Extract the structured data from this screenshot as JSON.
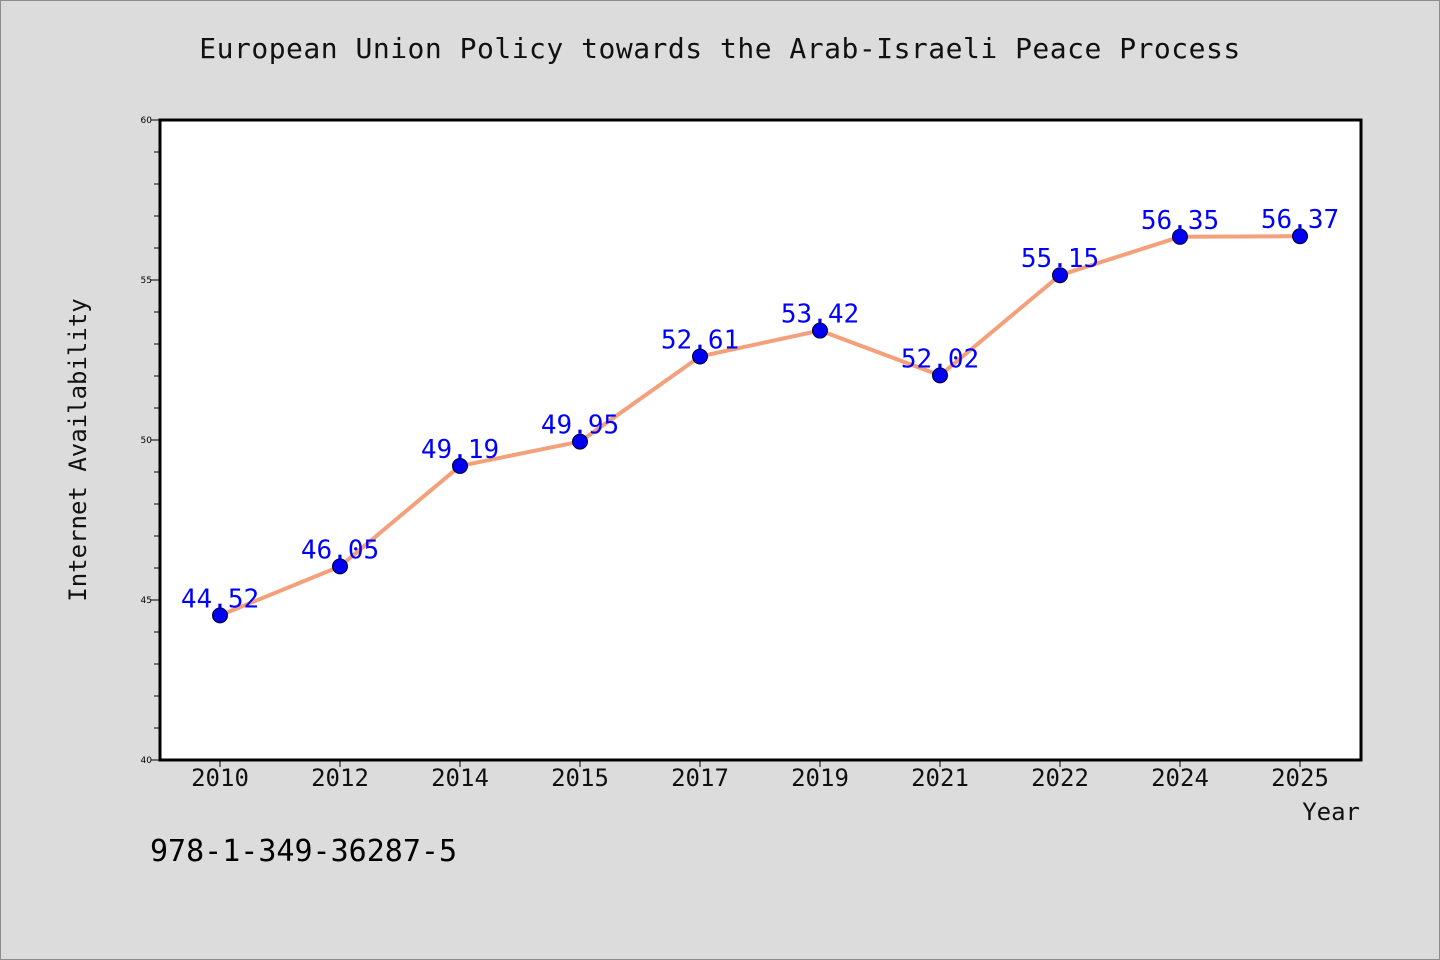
{
  "chart_data": {
    "type": "line",
    "title": "European Union Policy towards the Arab-Israeli Peace Process",
    "xlabel": "Year",
    "ylabel": "Internet Availability",
    "categories": [
      "2010",
      "2012",
      "2014",
      "2015",
      "2017",
      "2019",
      "2021",
      "2022",
      "2024",
      "2025"
    ],
    "values": [
      44.52,
      46.05,
      49.19,
      49.95,
      52.61,
      53.42,
      52.02,
      55.15,
      56.35,
      56.37
    ],
    "data_labels": [
      "44.52",
      "46.05",
      "49.19",
      "49.95",
      "52.61",
      "53.42",
      "52.02",
      "55.15",
      "56.35",
      "56.37"
    ],
    "ylim": [
      40,
      60
    ],
    "y_ticks": [
      40,
      45,
      50,
      55,
      60
    ],
    "y_tick_labels": [
      "40",
      "45",
      "50",
      "55",
      "60"
    ],
    "grid": false,
    "line_color": "#f4a07a",
    "marker_color": "#0000ee",
    "label_color": "#0000ff"
  },
  "footer": {
    "isbn": "978-1-349-36287-5"
  }
}
